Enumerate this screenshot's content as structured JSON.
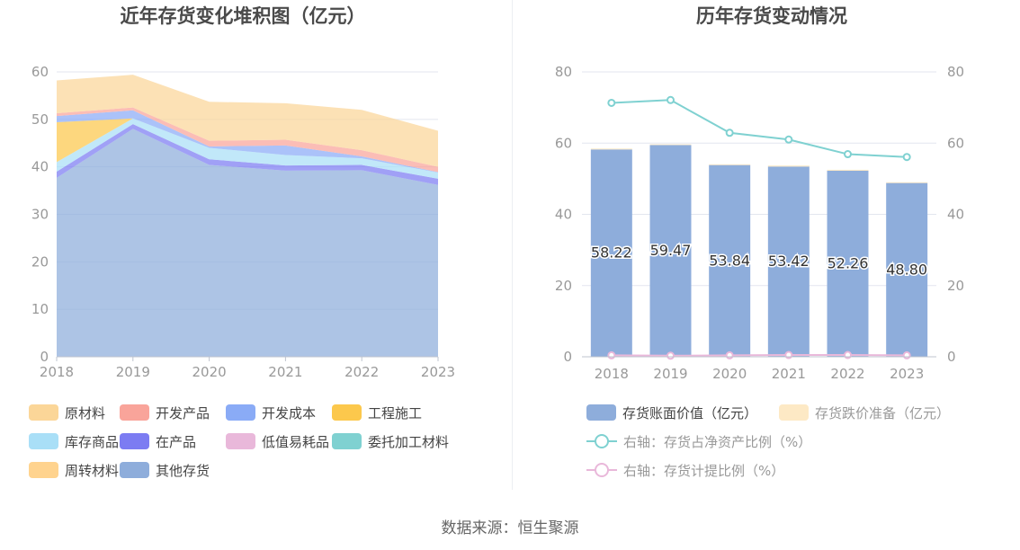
{
  "chart_data": [
    {
      "type": "area",
      "stacked": true,
      "title": "近年存货变化堆积图（亿元）",
      "categories": [
        "2018",
        "2019",
        "2020",
        "2021",
        "2022",
        "2023"
      ],
      "y_ticks": [
        "0",
        "10",
        "20",
        "30",
        "40",
        "50",
        "60"
      ],
      "ylim": [
        0,
        60
      ],
      "grid": true,
      "series": [
        {
          "name": "其他存货",
          "color": "#8eaddb",
          "values": [
            37.7,
            48.0,
            40.4,
            39.2,
            39.3,
            36.2
          ]
        },
        {
          "name": "周转材料",
          "color": "#ffd38e",
          "values": [
            0,
            0,
            0,
            0,
            0,
            0
          ]
        },
        {
          "name": "委托加工材料",
          "color": "#7fd1d1",
          "values": [
            0,
            0,
            0,
            0,
            0,
            0
          ]
        },
        {
          "name": "低值易耗品",
          "color": "#e9b8da",
          "values": [
            0,
            0,
            0,
            0,
            0,
            0
          ]
        },
        {
          "name": "在产品",
          "color": "#7c7cf2",
          "values": [
            1.3,
            1.0,
            1.2,
            1.1,
            1.1,
            1.3
          ]
        },
        {
          "name": "库存商品",
          "color": "#a9dff7",
          "values": [
            2.0,
            1.2,
            2.4,
            2.2,
            1.4,
            1.3
          ]
        },
        {
          "name": "工程施工",
          "color": "#fcc84c",
          "values": [
            8.4,
            0,
            0,
            0,
            0,
            0
          ]
        },
        {
          "name": "开发成本",
          "color": "#8aabf6",
          "values": [
            1.3,
            1.7,
            0.3,
            2.0,
            0.4,
            0.1
          ]
        },
        {
          "name": "开发产品",
          "color": "#f9a49a",
          "values": [
            0.6,
            0.6,
            1.2,
            1.2,
            1.3,
            1.1
          ]
        },
        {
          "name": "原材料",
          "color": "#fbd698",
          "values": [
            6.9,
            6.9,
            8.2,
            7.7,
            8.5,
            7.6
          ]
        }
      ],
      "legend": [
        "原材料",
        "开发产品",
        "开发成本",
        "工程施工",
        "库存商品",
        "在产品",
        "低值易耗品",
        "委托加工材料",
        "周转材料",
        "其他存货"
      ],
      "legend_position": "bottom"
    },
    {
      "type": "bar+line",
      "title": "历年存货变动情况",
      "categories": [
        "2018",
        "2019",
        "2020",
        "2021",
        "2022",
        "2023"
      ],
      "y_ticks_left": [
        "0",
        "20",
        "40",
        "60",
        "80"
      ],
      "y_ticks_right": [
        "0",
        "20",
        "40",
        "60",
        "80"
      ],
      "ylim": [
        0,
        80
      ],
      "grid": true,
      "bars": [
        {
          "name": "存货账面价值（亿元）",
          "color": "#8eaddb",
          "values": [
            58.22,
            59.47,
            53.84,
            53.42,
            52.26,
            48.8
          ],
          "labels": [
            "58.22",
            "59.47",
            "53.84",
            "53.42",
            "52.26",
            "48.80"
          ]
        },
        {
          "name": "存货跌价准备（亿元）",
          "color": "#fde9c5",
          "values": [
            0.25,
            0.2,
            0.22,
            0.28,
            0.25,
            0.22
          ]
        }
      ],
      "lines": [
        {
          "name": "右轴：存货占净资产比例（%）",
          "color": "#7fd1d1",
          "values": [
            71.3,
            72.1,
            62.9,
            61.0,
            56.9,
            56.1
          ]
        },
        {
          "name": "右轴：存货计提比例（%）",
          "color": "#e9b8da",
          "values": [
            0.4,
            0.3,
            0.4,
            0.5,
            0.5,
            0.4
          ]
        }
      ],
      "legend_position": "bottom"
    }
  ],
  "footer": {
    "source": "数据来源：恒生聚源"
  }
}
